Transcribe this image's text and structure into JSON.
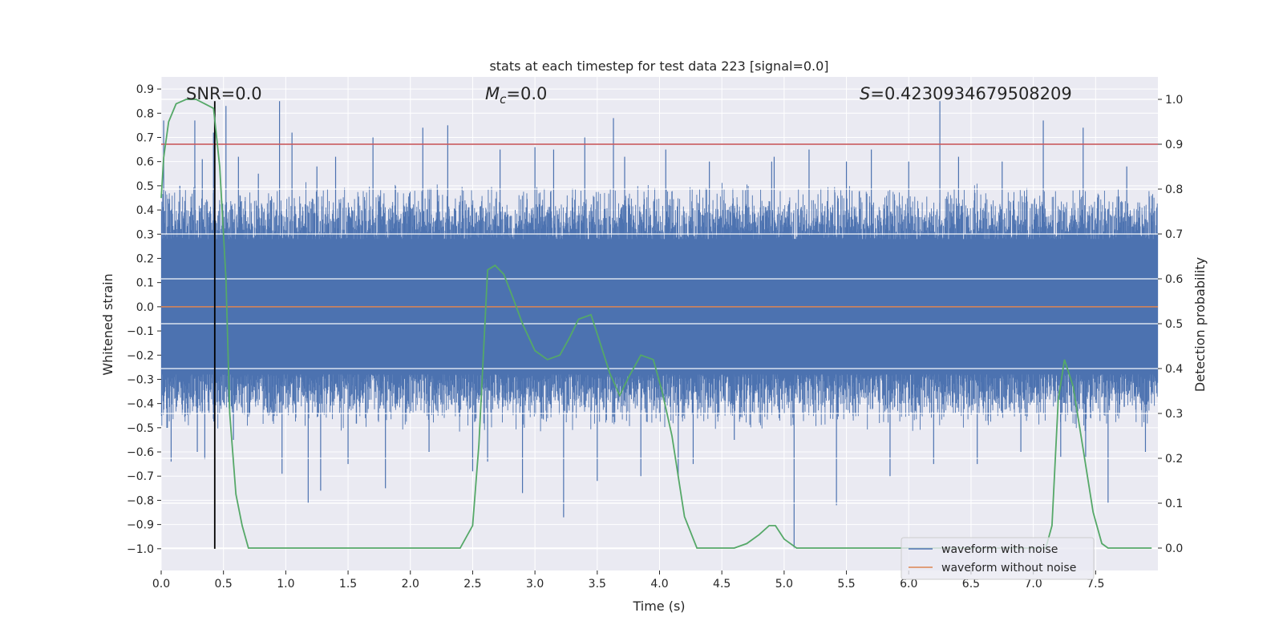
{
  "chart_data": {
    "type": "line",
    "title": "stats at each timestep for test data 223 [signal=0.0]",
    "xlabel": "Time (s)",
    "ylabel": "Whitened strain",
    "ylabel_right": "Detection probability",
    "xlim": [
      0.0,
      8.0
    ],
    "ylim": [
      -1.09,
      0.95
    ],
    "ylim_right": [
      -0.05,
      1.05
    ],
    "grid": true,
    "x_ticks": [
      "0.0",
      "0.5",
      "1.0",
      "1.5",
      "2.0",
      "2.5",
      "3.0",
      "3.5",
      "4.0",
      "4.5",
      "5.0",
      "5.5",
      "6.0",
      "6.5",
      "7.0",
      "7.5"
    ],
    "y_ticks": [
      "0.9",
      "0.8",
      "0.7",
      "0.6",
      "0.5",
      "0.4",
      "0.3",
      "0.2",
      "0.1",
      "0.0",
      "−1.0"
    ],
    "y_ticks_full": [
      "0.9",
      "0.8",
      "0.7",
      "0.6",
      "0.5",
      "0.4",
      "0.3",
      "0.2",
      "0.1",
      "0.0",
      "−0.1",
      "−0.2",
      "−0.3",
      "−0.4",
      "−0.5",
      "−0.6",
      "−0.7",
      "−0.8",
      "−0.9",
      "−1.0"
    ],
    "y2_ticks": [
      "1.0",
      "0.9",
      "0.8",
      "0.7",
      "0.6",
      "0.5",
      "0.4",
      "0.3",
      "0.2",
      "0.1",
      "0.0"
    ],
    "annotations": {
      "snr_label": "SNR=0.0",
      "mc_symbol": "M",
      "mc_sub": "c",
      "mc_value": "=0.0",
      "s_symbol": "S",
      "s_value": "=0.4230934679508209"
    },
    "threshold": {
      "value": 0.9,
      "axis": "right",
      "color": "#c44e52"
    },
    "marker_line": {
      "x": 0.43,
      "y_from": -1.0,
      "y_to": 0.85,
      "color": "#000000"
    },
    "series": [
      {
        "name": "waveform with noise",
        "color": "#4c72b0",
        "axis": "left",
        "envelope": {
          "upper_typical": 0.45,
          "lower_typical": -0.45,
          "spikes": [
            [
              0.02,
              0.77
            ],
            [
              0.05,
              -0.5
            ],
            [
              0.08,
              -0.64
            ],
            [
              0.15,
              0.5
            ],
            [
              0.27,
              0.77
            ],
            [
              0.29,
              -0.6
            ],
            [
              0.33,
              0.61
            ],
            [
              0.35,
              -0.63
            ],
            [
              0.42,
              0.72
            ],
            [
              0.52,
              0.83
            ],
            [
              0.58,
              -0.55
            ],
            [
              0.62,
              0.62
            ],
            [
              0.78,
              0.55
            ],
            [
              0.95,
              0.85
            ],
            [
              0.97,
              -0.69
            ],
            [
              1.05,
              0.72
            ],
            [
              1.18,
              -0.81
            ],
            [
              1.25,
              0.58
            ],
            [
              1.28,
              -0.76
            ],
            [
              1.4,
              0.62
            ],
            [
              1.5,
              -0.65
            ],
            [
              1.7,
              0.7
            ],
            [
              1.8,
              -0.75
            ],
            [
              2.1,
              0.74
            ],
            [
              2.15,
              -0.6
            ],
            [
              2.3,
              0.75
            ],
            [
              2.5,
              -0.68
            ],
            [
              2.62,
              -0.64
            ],
            [
              2.72,
              0.65
            ],
            [
              2.9,
              -0.77
            ],
            [
              3.0,
              0.66
            ],
            [
              3.15,
              0.65
            ],
            [
              3.23,
              -0.87
            ],
            [
              3.4,
              0.7
            ],
            [
              3.5,
              -0.72
            ],
            [
              3.63,
              0.78
            ],
            [
              3.72,
              0.62
            ],
            [
              3.85,
              -0.7
            ],
            [
              4.05,
              0.65
            ],
            [
              4.15,
              -0.7
            ],
            [
              4.27,
              -0.65
            ],
            [
              4.4,
              0.6
            ],
            [
              4.6,
              -0.55
            ],
            [
              4.9,
              0.6
            ],
            [
              4.92,
              0.62
            ],
            [
              5.08,
              -1.0
            ],
            [
              5.2,
              0.65
            ],
            [
              5.42,
              -0.82
            ],
            [
              5.5,
              0.6
            ],
            [
              5.7,
              0.65
            ],
            [
              5.85,
              -0.7
            ],
            [
              6.0,
              0.6
            ],
            [
              6.2,
              -0.65
            ],
            [
              6.25,
              0.85
            ],
            [
              6.4,
              0.62
            ],
            [
              6.55,
              -0.65
            ],
            [
              6.75,
              0.6
            ],
            [
              6.9,
              -0.6
            ],
            [
              7.08,
              0.77
            ],
            [
              7.22,
              -0.62
            ],
            [
              7.4,
              0.74
            ],
            [
              7.42,
              -0.62
            ],
            [
              7.6,
              -0.81
            ],
            [
              7.75,
              0.58
            ],
            [
              7.9,
              -0.6
            ]
          ]
        }
      },
      {
        "name": "waveform without noise",
        "color": "#dd8452",
        "axis": "left",
        "x": [
          0.0,
          8.0
        ],
        "y": [
          0.0,
          0.0
        ]
      },
      {
        "name": "detection probability",
        "color": "#55a868",
        "axis": "right",
        "x": [
          0.0,
          0.02,
          0.06,
          0.12,
          0.2,
          0.28,
          0.35,
          0.42,
          0.47,
          0.52,
          0.55,
          0.6,
          0.65,
          0.7,
          0.75,
          1.0,
          1.5,
          1.6,
          1.8,
          2.0,
          2.4,
          2.5,
          2.55,
          2.62,
          2.68,
          2.75,
          2.82,
          2.9,
          3.0,
          3.1,
          3.2,
          3.28,
          3.35,
          3.45,
          3.52,
          3.6,
          3.68,
          3.75,
          3.85,
          3.95,
          4.02,
          4.1,
          4.2,
          4.3,
          4.4,
          4.6,
          4.7,
          4.8,
          4.88,
          4.93,
          5.0,
          5.1,
          5.3,
          6.0,
          7.0,
          7.1,
          7.15,
          7.2,
          7.25,
          7.32,
          7.4,
          7.48,
          7.55,
          7.6,
          7.8,
          7.95
        ],
        "y": [
          0.78,
          0.87,
          0.95,
          0.99,
          1.0,
          1.0,
          0.99,
          0.98,
          0.85,
          0.6,
          0.3,
          0.12,
          0.05,
          0.0,
          0.0,
          0.0,
          0.0,
          0.0,
          0.0,
          0.0,
          0.0,
          0.05,
          0.23,
          0.62,
          0.63,
          0.61,
          0.56,
          0.5,
          0.44,
          0.42,
          0.43,
          0.47,
          0.51,
          0.52,
          0.46,
          0.39,
          0.34,
          0.38,
          0.43,
          0.42,
          0.35,
          0.25,
          0.07,
          0.0,
          0.0,
          0.0,
          0.01,
          0.03,
          0.05,
          0.05,
          0.02,
          0.0,
          0.0,
          0.0,
          0.0,
          0.0,
          0.05,
          0.33,
          0.42,
          0.36,
          0.22,
          0.08,
          0.01,
          0.0,
          0.0,
          0.0
        ]
      }
    ],
    "legend": {
      "placement": "lower-right",
      "entries": [
        {
          "label": "waveform with noise",
          "color": "#4c72b0"
        },
        {
          "label": "waveform without noise",
          "color": "#dd8452"
        }
      ]
    }
  }
}
